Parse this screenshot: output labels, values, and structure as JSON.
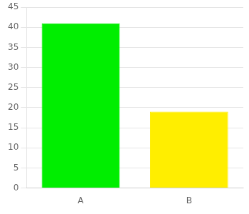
{
  "chart_data": {
    "type": "bar",
    "categories": [
      "A",
      "B"
    ],
    "values": [
      41,
      19
    ],
    "colors": [
      "#00ee00",
      "#ffee00"
    ],
    "ylim": [
      0,
      45
    ],
    "yticks": [
      0,
      5,
      10,
      15,
      20,
      25,
      30,
      35,
      40,
      45
    ],
    "grid": true
  }
}
